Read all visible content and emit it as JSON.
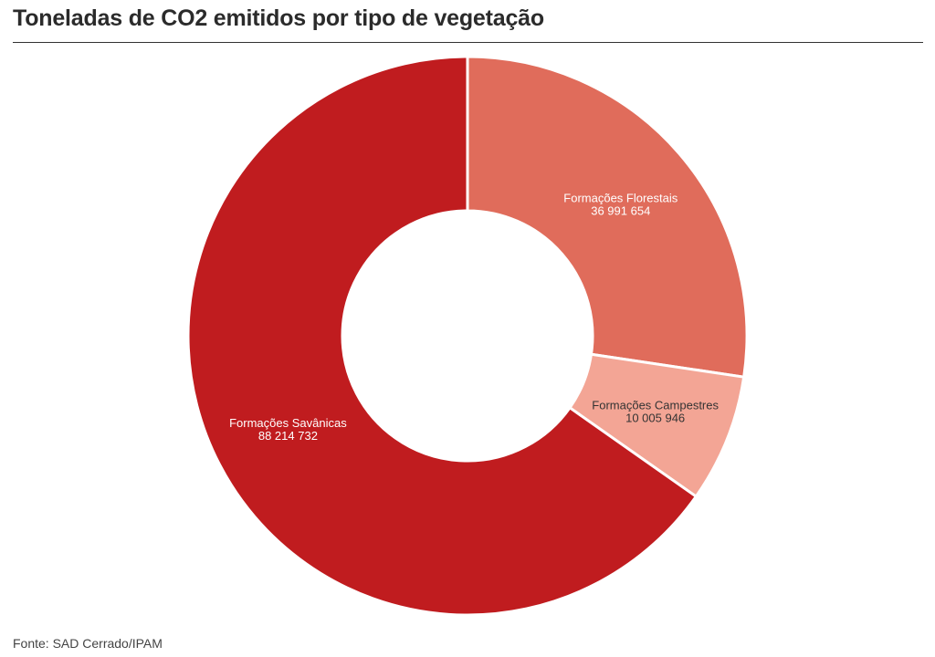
{
  "title": "Toneladas de CO2 emitidos por tipo de vegetação",
  "source": "Fonte: SAD Cerrado/IPAM",
  "chart_data": {
    "type": "pie",
    "title": "Toneladas de CO2 emitidos por tipo de vegetação",
    "donut": true,
    "slices": [
      {
        "label": "Formações Florestais",
        "value": 36991654,
        "value_text": "36 991 654",
        "color": "#e06c5b",
        "label_color": "#ffffff"
      },
      {
        "label": "Formações Campestres",
        "value": 10005946,
        "value_text": "10 005 946",
        "color": "#f3a595",
        "label_color": "#333333"
      },
      {
        "label": "Formações Savânicas",
        "value": 88214732,
        "value_text": "88 214 732",
        "color": "#c01c1f",
        "label_color": "#ffffff"
      }
    ]
  }
}
